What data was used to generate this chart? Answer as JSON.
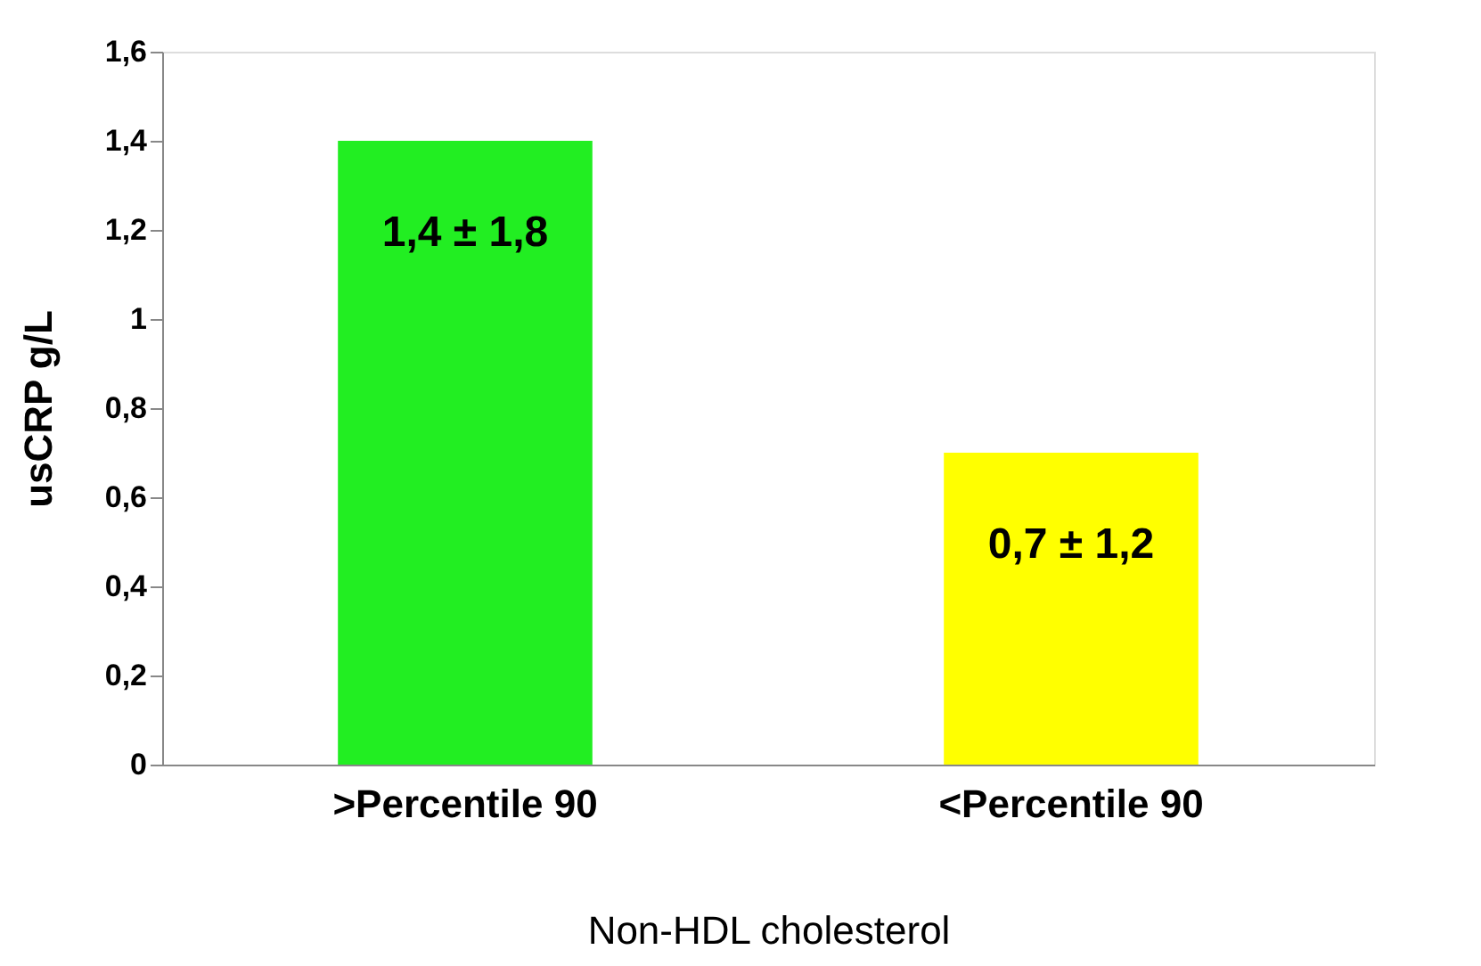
{
  "chart_data": {
    "type": "bar",
    "xlabel": "Non-HDL cholesterol",
    "ylabel": "usCRP g/L",
    "categories": [
      ">Percentile 90",
      "<Percentile 90"
    ],
    "values": [
      1.4,
      0.7
    ],
    "colors": [
      "#22ee22",
      "#ffff00"
    ],
    "value_labels": [
      "1,4 ± 1,8",
      "0,7 ± 1,2"
    ],
    "ylim": [
      0,
      1.6
    ],
    "yticks": [
      0,
      {
        "value": 0.2,
        "label": "0,2"
      },
      {
        "value": 0.4,
        "label": "0,4"
      },
      {
        "value": 0.6,
        "label": "0,6"
      },
      {
        "value": 0.8,
        "label": "0,8"
      },
      1,
      {
        "value": 1.2,
        "label": "1,2"
      },
      {
        "value": 1.4,
        "label": "1,4"
      },
      {
        "value": 1.6,
        "label": "1,6"
      }
    ],
    "grid": false,
    "legend": false
  }
}
